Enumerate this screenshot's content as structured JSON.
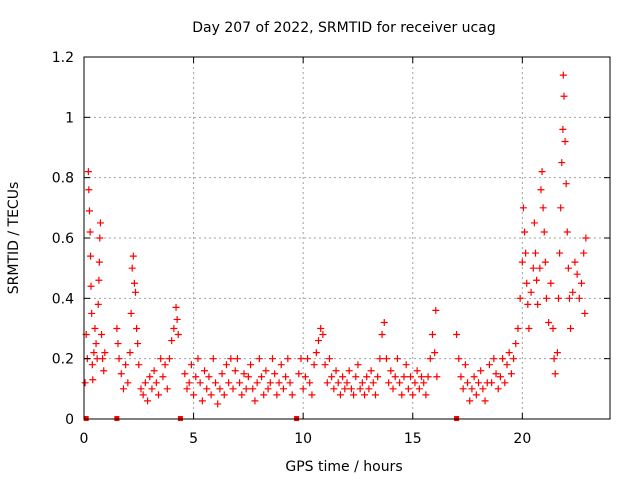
{
  "chart_data": {
    "type": "scatter",
    "title": "Day 207 of 2022, SRMTID for receiver ucag",
    "xlabel": "GPS time / hours",
    "ylabel": "SRMTID / TECUs",
    "xlim": [
      0,
      24
    ],
    "ylim": [
      0,
      1.2
    ],
    "xticks": [
      0,
      5,
      10,
      15,
      20
    ],
    "xtick_labels": [
      "0",
      "5",
      "10",
      "15",
      "20"
    ],
    "yticks": [
      0,
      0.2,
      0.4,
      0.6,
      0.8,
      1.0,
      1.2
    ],
    "ytick_labels": [
      "0",
      "0.2",
      "0.4",
      "0.6",
      "0.8",
      "1",
      "1.2"
    ],
    "grid": true,
    "marker": "+",
    "color": "#ff0000",
    "zero_markers": [
      0.1,
      1.5,
      4.4,
      9.7,
      17.0
    ],
    "series": [
      {
        "name": "SRMTID",
        "points": [
          [
            0.05,
            0.12
          ],
          [
            0.1,
            0.28
          ],
          [
            0.15,
            0.2
          ],
          [
            0.2,
            0.82
          ],
          [
            0.22,
            0.76
          ],
          [
            0.25,
            0.69
          ],
          [
            0.28,
            0.62
          ],
          [
            0.3,
            0.54
          ],
          [
            0.32,
            0.44
          ],
          [
            0.35,
            0.35
          ],
          [
            0.38,
            0.18
          ],
          [
            0.4,
            0.13
          ],
          [
            0.45,
            0.22
          ],
          [
            0.5,
            0.3
          ],
          [
            0.55,
            0.25
          ],
          [
            0.6,
            0.2
          ],
          [
            0.65,
            0.38
          ],
          [
            0.68,
            0.46
          ],
          [
            0.7,
            0.52
          ],
          [
            0.72,
            0.6
          ],
          [
            0.75,
            0.65
          ],
          [
            0.8,
            0.28
          ],
          [
            0.85,
            0.2
          ],
          [
            0.9,
            0.16
          ],
          [
            0.95,
            0.22
          ],
          [
            1.5,
            0.3
          ],
          [
            1.55,
            0.25
          ],
          [
            1.6,
            0.2
          ],
          [
            1.7,
            0.15
          ],
          [
            1.8,
            0.1
          ],
          [
            1.9,
            0.18
          ],
          [
            2.0,
            0.12
          ],
          [
            2.1,
            0.22
          ],
          [
            2.15,
            0.35
          ],
          [
            2.2,
            0.5
          ],
          [
            2.25,
            0.54
          ],
          [
            2.3,
            0.45
          ],
          [
            2.35,
            0.42
          ],
          [
            2.4,
            0.3
          ],
          [
            2.45,
            0.25
          ],
          [
            2.5,
            0.18
          ],
          [
            2.6,
            0.1
          ],
          [
            2.7,
            0.08
          ],
          [
            2.8,
            0.12
          ],
          [
            2.9,
            0.06
          ],
          [
            3.0,
            0.14
          ],
          [
            3.1,
            0.1
          ],
          [
            3.2,
            0.16
          ],
          [
            3.3,
            0.12
          ],
          [
            3.4,
            0.08
          ],
          [
            3.5,
            0.2
          ],
          [
            3.6,
            0.14
          ],
          [
            3.7,
            0.18
          ],
          [
            3.8,
            0.1
          ],
          [
            3.9,
            0.2
          ],
          [
            4.0,
            0.26
          ],
          [
            4.1,
            0.3
          ],
          [
            4.2,
            0.37
          ],
          [
            4.25,
            0.33
          ],
          [
            4.3,
            0.28
          ],
          [
            4.6,
            0.15
          ],
          [
            4.7,
            0.1
          ],
          [
            4.8,
            0.12
          ],
          [
            4.9,
            0.18
          ],
          [
            5.0,
            0.08
          ],
          [
            5.1,
            0.14
          ],
          [
            5.2,
            0.2
          ],
          [
            5.3,
            0.12
          ],
          [
            5.4,
            0.06
          ],
          [
            5.5,
            0.16
          ],
          [
            5.6,
            0.1
          ],
          [
            5.7,
            0.14
          ],
          [
            5.8,
            0.08
          ],
          [
            5.9,
            0.2
          ],
          [
            6.0,
            0.12
          ],
          [
            6.1,
            0.05
          ],
          [
            6.2,
            0.1
          ],
          [
            6.3,
            0.15
          ],
          [
            6.4,
            0.08
          ],
          [
            6.5,
            0.18
          ],
          [
            6.6,
            0.12
          ],
          [
            6.7,
            0.2
          ],
          [
            6.8,
            0.1
          ],
          [
            6.9,
            0.16
          ],
          [
            7.0,
            0.2
          ],
          [
            7.1,
            0.12
          ],
          [
            7.2,
            0.08
          ],
          [
            7.3,
            0.15
          ],
          [
            7.4,
            0.1
          ],
          [
            7.5,
            0.14
          ],
          [
            7.6,
            0.18
          ],
          [
            7.7,
            0.1
          ],
          [
            7.8,
            0.06
          ],
          [
            7.9,
            0.12
          ],
          [
            8.0,
            0.2
          ],
          [
            8.1,
            0.14
          ],
          [
            8.2,
            0.08
          ],
          [
            8.3,
            0.16
          ],
          [
            8.4,
            0.1
          ],
          [
            8.5,
            0.12
          ],
          [
            8.6,
            0.2
          ],
          [
            8.7,
            0.15
          ],
          [
            8.8,
            0.08
          ],
          [
            8.9,
            0.12
          ],
          [
            9.0,
            0.18
          ],
          [
            9.1,
            0.1
          ],
          [
            9.2,
            0.14
          ],
          [
            9.3,
            0.2
          ],
          [
            9.4,
            0.12
          ],
          [
            9.5,
            0.08
          ],
          [
            9.8,
            0.15
          ],
          [
            9.9,
            0.2
          ],
          [
            10.0,
            0.1
          ],
          [
            10.1,
            0.14
          ],
          [
            10.2,
            0.2
          ],
          [
            10.3,
            0.12
          ],
          [
            10.4,
            0.08
          ],
          [
            10.5,
            0.18
          ],
          [
            10.6,
            0.22
          ],
          [
            10.7,
            0.26
          ],
          [
            10.8,
            0.3
          ],
          [
            10.9,
            0.28
          ],
          [
            11.0,
            0.18
          ],
          [
            11.1,
            0.12
          ],
          [
            11.2,
            0.2
          ],
          [
            11.3,
            0.14
          ],
          [
            11.4,
            0.1
          ],
          [
            11.5,
            0.16
          ],
          [
            11.6,
            0.12
          ],
          [
            11.7,
            0.08
          ],
          [
            11.8,
            0.14
          ],
          [
            11.9,
            0.1
          ],
          [
            12.0,
            0.12
          ],
          [
            12.1,
            0.16
          ],
          [
            12.2,
            0.1
          ],
          [
            12.3,
            0.08
          ],
          [
            12.4,
            0.14
          ],
          [
            12.5,
            0.18
          ],
          [
            12.6,
            0.1
          ],
          [
            12.7,
            0.12
          ],
          [
            12.8,
            0.08
          ],
          [
            12.9,
            0.14
          ],
          [
            13.0,
            0.1
          ],
          [
            13.1,
            0.16
          ],
          [
            13.2,
            0.12
          ],
          [
            13.3,
            0.08
          ],
          [
            13.4,
            0.14
          ],
          [
            13.5,
            0.2
          ],
          [
            13.6,
            0.28
          ],
          [
            13.7,
            0.32
          ],
          [
            13.8,
            0.2
          ],
          [
            13.9,
            0.12
          ],
          [
            14.0,
            0.16
          ],
          [
            14.1,
            0.1
          ],
          [
            14.2,
            0.14
          ],
          [
            14.3,
            0.2
          ],
          [
            14.4,
            0.12
          ],
          [
            14.5,
            0.08
          ],
          [
            14.6,
            0.14
          ],
          [
            14.7,
            0.18
          ],
          [
            14.8,
            0.1
          ],
          [
            14.9,
            0.14
          ],
          [
            15.0,
            0.08
          ],
          [
            15.1,
            0.12
          ],
          [
            15.2,
            0.16
          ],
          [
            15.3,
            0.1
          ],
          [
            15.4,
            0.14
          ],
          [
            15.5,
            0.12
          ],
          [
            15.6,
            0.08
          ],
          [
            15.7,
            0.14
          ],
          [
            15.8,
            0.2
          ],
          [
            15.9,
            0.28
          ],
          [
            16.0,
            0.22
          ],
          [
            16.05,
            0.36
          ],
          [
            16.1,
            0.14
          ],
          [
            17.0,
            0.28
          ],
          [
            17.1,
            0.2
          ],
          [
            17.2,
            0.14
          ],
          [
            17.3,
            0.1
          ],
          [
            17.4,
            0.18
          ],
          [
            17.5,
            0.12
          ],
          [
            17.6,
            0.06
          ],
          [
            17.7,
            0.1
          ],
          [
            17.8,
            0.14
          ],
          [
            17.9,
            0.08
          ],
          [
            18.0,
            0.12
          ],
          [
            18.1,
            0.16
          ],
          [
            18.2,
            0.1
          ],
          [
            18.3,
            0.06
          ],
          [
            18.4,
            0.12
          ],
          [
            18.5,
            0.18
          ],
          [
            18.6,
            0.12
          ],
          [
            18.7,
            0.2
          ],
          [
            18.8,
            0.15
          ],
          [
            18.9,
            0.1
          ],
          [
            19.0,
            0.14
          ],
          [
            19.1,
            0.2
          ],
          [
            19.2,
            0.12
          ],
          [
            19.3,
            0.18
          ],
          [
            19.4,
            0.22
          ],
          [
            19.5,
            0.15
          ],
          [
            19.6,
            0.2
          ],
          [
            19.7,
            0.25
          ],
          [
            19.8,
            0.3
          ],
          [
            19.9,
            0.4
          ],
          [
            20.0,
            0.52
          ],
          [
            20.05,
            0.7
          ],
          [
            20.1,
            0.62
          ],
          [
            20.15,
            0.55
          ],
          [
            20.2,
            0.45
          ],
          [
            20.25,
            0.38
          ],
          [
            20.3,
            0.3
          ],
          [
            20.4,
            0.42
          ],
          [
            20.5,
            0.5
          ],
          [
            20.55,
            0.65
          ],
          [
            20.6,
            0.55
          ],
          [
            20.65,
            0.46
          ],
          [
            20.7,
            0.38
          ],
          [
            20.8,
            0.5
          ],
          [
            20.85,
            0.76
          ],
          [
            20.9,
            0.82
          ],
          [
            20.95,
            0.7
          ],
          [
            21.0,
            0.62
          ],
          [
            21.05,
            0.52
          ],
          [
            21.1,
            0.4
          ],
          [
            21.2,
            0.32
          ],
          [
            21.3,
            0.45
          ],
          [
            21.4,
            0.3
          ],
          [
            21.45,
            0.2
          ],
          [
            21.5,
            0.15
          ],
          [
            21.6,
            0.22
          ],
          [
            21.65,
            0.4
          ],
          [
            21.7,
            0.55
          ],
          [
            21.75,
            0.7
          ],
          [
            21.8,
            0.85
          ],
          [
            21.85,
            0.96
          ],
          [
            21.87,
            1.14
          ],
          [
            21.9,
            1.07
          ],
          [
            21.95,
            0.92
          ],
          [
            22.0,
            0.78
          ],
          [
            22.05,
            0.62
          ],
          [
            22.1,
            0.5
          ],
          [
            22.15,
            0.4
          ],
          [
            22.2,
            0.3
          ],
          [
            22.3,
            0.42
          ],
          [
            22.4,
            0.52
          ],
          [
            22.5,
            0.48
          ],
          [
            22.6,
            0.4
          ],
          [
            22.7,
            0.45
          ],
          [
            22.8,
            0.55
          ],
          [
            22.85,
            0.35
          ],
          [
            22.9,
            0.6
          ]
        ]
      }
    ]
  }
}
